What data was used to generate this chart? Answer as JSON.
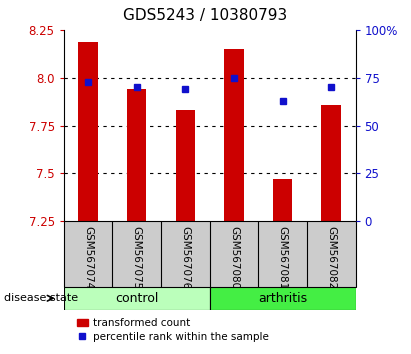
{
  "title": "GDS5243 / 10380793",
  "samples": [
    "GSM567074",
    "GSM567075",
    "GSM567076",
    "GSM567080",
    "GSM567081",
    "GSM567082"
  ],
  "transformed_count": [
    8.19,
    7.94,
    7.83,
    8.15,
    7.47,
    7.86
  ],
  "percentile_rank": [
    73,
    70,
    69,
    75,
    63,
    70
  ],
  "ylim_left": [
    7.25,
    8.25
  ],
  "ylim_right": [
    0,
    100
  ],
  "yticks_left": [
    7.25,
    7.5,
    7.75,
    8.0,
    8.25
  ],
  "yticks_right": [
    0,
    25,
    50,
    75,
    100
  ],
  "ytick_labels_right": [
    "0",
    "25",
    "50",
    "75",
    "100%"
  ],
  "bar_color": "#cc0000",
  "square_color": "#1010cc",
  "grid_lines": [
    7.5,
    7.75,
    8.0
  ],
  "groups": [
    {
      "label": "control",
      "indices": [
        0,
        1,
        2
      ],
      "color": "#bbffbb"
    },
    {
      "label": "arthritis",
      "indices": [
        3,
        4,
        5
      ],
      "color": "#44ee44"
    }
  ],
  "disease_state_label": "disease state",
  "legend_bar_label": "transformed count",
  "legend_sq_label": "percentile rank within the sample",
  "bar_bottom": 7.25,
  "title_fontsize": 11,
  "tick_fontsize": 8.5,
  "label_fontsize": 9,
  "sample_label_bg": "#cccccc",
  "sample_label_fontsize": 7.5,
  "group_label_fontsize": 9
}
